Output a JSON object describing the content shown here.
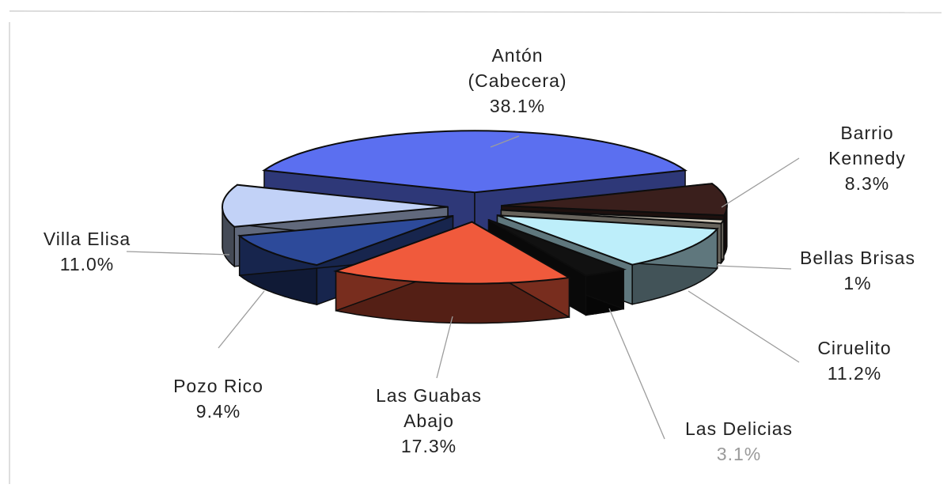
{
  "chart_data": {
    "type": "pie",
    "title": "",
    "three_d": true,
    "exploded": true,
    "legend": "none",
    "slices": [
      {
        "label_lines": [
          "Antón",
          "(Cabecera)"
        ],
        "value_label": "38.1%",
        "value": 38.1,
        "color": "#5b6ff0"
      },
      {
        "label_lines": [
          "Barrio",
          "Kennedy"
        ],
        "value_label": "8.3%",
        "value": 8.3,
        "color": "#3a1f1c"
      },
      {
        "label_lines": [
          "Bellas Brisas"
        ],
        "value_label": "1%",
        "value": 1,
        "color": "#cfc7b8"
      },
      {
        "label_lines": [
          "Ciruelito"
        ],
        "value_label": "11.2%",
        "value": 11.2,
        "color": "#bdeefa"
      },
      {
        "label_lines": [
          "Las Delicias"
        ],
        "value_label": "3.1%",
        "value": 3.1,
        "color": "#111111"
      },
      {
        "label_lines": [
          "Las Guabas",
          "Abajo"
        ],
        "value_label": "17.3%",
        "value": 17.3,
        "color": "#f05a3c"
      },
      {
        "label_lines": [
          "Pozo Rico"
        ],
        "value_label": "9.4%",
        "value": 9.4,
        "color": "#2d4a9a"
      },
      {
        "label_lines": [
          "Villa Elisa"
        ],
        "value_label": "11.0%",
        "value": 11.0,
        "color": "#c2d2f7"
      }
    ]
  }
}
